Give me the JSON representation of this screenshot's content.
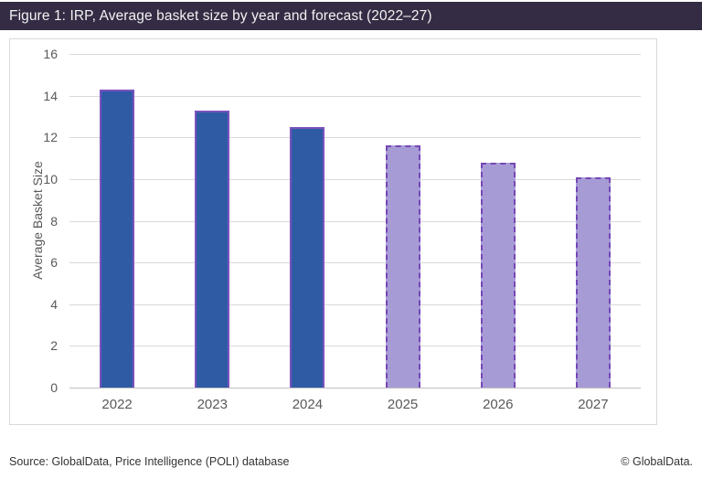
{
  "header": {
    "title": "Figure 1: IRP, Average basket size by year and forecast (2022–27)"
  },
  "chart_data": {
    "type": "bar",
    "title": "Figure 1: IRP, Average basket size by year and forecast (2022–27)",
    "categories": [
      "2022",
      "2023",
      "2024",
      "2025",
      "2026",
      "2027"
    ],
    "values": [
      14.3,
      13.3,
      12.5,
      11.6,
      10.8,
      10.1
    ],
    "forecast_flags": [
      false,
      false,
      false,
      true,
      true,
      true
    ],
    "xlabel": "",
    "ylabel": "Average Basket Size",
    "ylim": [
      0,
      16
    ],
    "ytick_step": 2,
    "grid": true,
    "legend_position": "none",
    "bar_styles": {
      "actual": {
        "fill": "#2f5ba5",
        "border": "#7a52be",
        "border_style": "solid"
      },
      "forecast": {
        "fill": "#a79bd6",
        "border": "#7547b5",
        "border_style": "dashed"
      }
    }
  },
  "footer": {
    "source": "Source: GlobalData, Price Intelligence (POLI) database",
    "copyright": "© GlobalData."
  },
  "colors": {
    "header_bg": "#342c44",
    "header_text": "#f2f2f2",
    "box_border": "#d9d9d9",
    "grid": "#d9d9d9",
    "zero_line": "#bfbfbf",
    "axis_text": "#595959",
    "footer_text": "#333333"
  }
}
